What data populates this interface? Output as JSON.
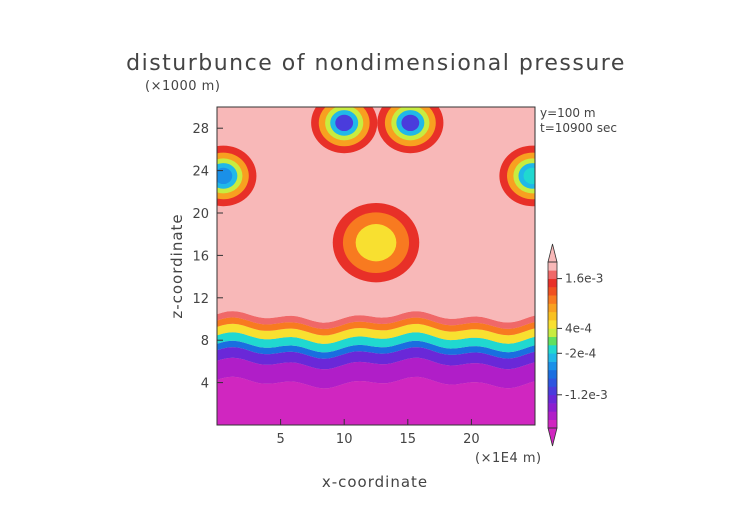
{
  "chart_data": {
    "type": "heatmap",
    "title": "disturbunce of nondimensional pressure",
    "xlabel": "x-coordinate",
    "ylabel": "z-coordinate",
    "x_unit": "(×1E4 m)",
    "y_unit": "(×1000 m)",
    "annotations": [
      "y=100 m",
      "t=10900 sec"
    ],
    "xlim": [
      0,
      25
    ],
    "ylim": [
      0,
      30
    ],
    "x_ticks": [
      5,
      10,
      15,
      20
    ],
    "y_ticks": [
      4,
      8,
      12,
      16,
      20,
      24,
      28
    ],
    "colorbar_labels": [
      {
        "value": 0.0016,
        "label": "1.6e-3"
      },
      {
        "value": 0.0004,
        "label": "4e-4"
      },
      {
        "value": -0.0002,
        "label": "-2e-4"
      },
      {
        "value": -0.0012,
        "label": "-1.2e-3"
      }
    ],
    "colorbar_min": -0.002,
    "colorbar_max": 0.002,
    "colorbar_levels": [
      -0.002,
      -0.0018,
      -0.0016,
      -0.0014,
      -0.0012,
      -0.001,
      -0.0008,
      -0.0006,
      -0.0004,
      -0.0002,
      0,
      0.0002,
      0.0004,
      0.0006,
      0.0008,
      0.001,
      0.0012,
      0.0014,
      0.0016,
      0.0018,
      0.002
    ],
    "colormap": [
      "#d026c0",
      "#b01ec8",
      "#8c1ed0",
      "#6a28d8",
      "#4a3cdc",
      "#2d55e0",
      "#1a6ee0",
      "#1a90e8",
      "#20b8e8",
      "#20d8d0",
      "#60e060",
      "#c8ec40",
      "#f8e030",
      "#f8c020",
      "#f8a020",
      "#f87a20",
      "#f05020",
      "#e83028",
      "#f06868",
      "#f8b8b8"
    ],
    "z_layers": [
      {
        "z": 0,
        "value": -0.0019
      },
      {
        "z": 4,
        "value": -0.0018
      },
      {
        "z": 5.8,
        "value": -0.0014
      },
      {
        "z": 6.8,
        "value": -0.0008
      },
      {
        "z": 7.4,
        "value": -0.0002
      },
      {
        "z": 8.2,
        "value": 0.0004
      },
      {
        "z": 9.0,
        "value": 0.001
      },
      {
        "z": 9.6,
        "value": 0.0016
      },
      {
        "z": 10.2,
        "value": 0.0019
      },
      {
        "z": 30,
        "value": 0.0019
      }
    ],
    "upper_features": [
      {
        "x": 0.5,
        "z": 23.5,
        "value": -0.0006
      },
      {
        "x": 12.5,
        "z": 17.2,
        "value": 0.0006
      },
      {
        "x": 10.0,
        "z": 28.5,
        "value": -0.0012
      },
      {
        "x": 15.2,
        "z": 28.5,
        "value": -0.0012
      },
      {
        "x": 24.8,
        "z": 23.5,
        "value": -0.0002
      }
    ]
  }
}
